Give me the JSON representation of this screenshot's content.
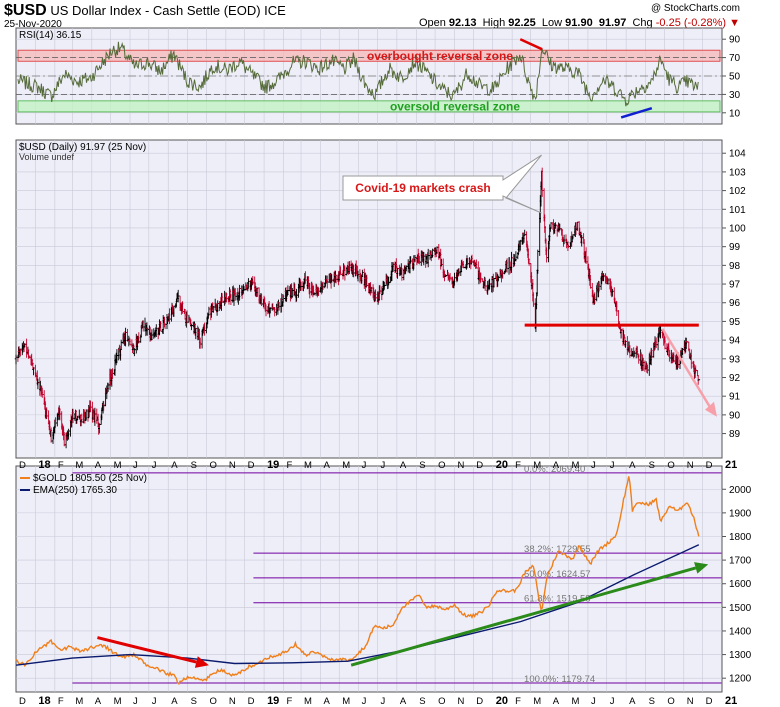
{
  "header": {
    "symbol": "$USD",
    "name": "US Dollar Index - Cash Settle (EOD)",
    "exchange": "ICE",
    "date": "25-Nov-2020",
    "brand": "@ StockCharts.com",
    "open_label": "Open",
    "open": "92.13",
    "high_label": "High",
    "high": "92.25",
    "low_label": "Low",
    "low": "91.90",
    "close": "91.97",
    "chg_label": "Chg",
    "chg": "-0.25 (-0.28%)"
  },
  "colors": {
    "background": "#eeeef8",
    "bar_up": "#000000",
    "bar_down": "#c0002a",
    "rsi_line": "#556b3a",
    "overbought_zone": "#f6b8b8",
    "oversold_zone": "#c0f2c0",
    "annotation_red": "#e00000",
    "annotation_blue": "#1020d0",
    "gold_line": "#f07f1b",
    "ema_line": "#0a1a6e",
    "fib_lines": "#7000a0",
    "green_arrow": "#2a8a1a",
    "pink_arrow": "#f7a0aa"
  },
  "time_axis": {
    "labels": [
      "D",
      "18",
      "F",
      "M",
      "A",
      "M",
      "J",
      "J",
      "A",
      "S",
      "O",
      "N",
      "D",
      "19",
      "F",
      "M",
      "A",
      "M",
      "J",
      "J",
      "A",
      "S",
      "O",
      "N",
      "D",
      "20",
      "F",
      "M",
      "A",
      "M",
      "J",
      "J",
      "A",
      "S",
      "O",
      "N",
      "D",
      "21"
    ],
    "start": "2017-12-01",
    "end": "2021-01-01"
  },
  "rsi_panel": {
    "legend": "RSI(14) 36.15",
    "ticks": [
      "10",
      "30",
      "50",
      "70",
      "90"
    ],
    "overbought_label": "overbought reversal zone",
    "oversold_label": "oversold reversal zone",
    "levels": [
      70,
      30
    ],
    "points": [
      [
        "2017-12-04",
        45
      ],
      [
        "2018-01-05",
        38
      ],
      [
        "2018-01-26",
        28
      ],
      [
        "2018-02-16",
        52
      ],
      [
        "2018-03-09",
        44
      ],
      [
        "2018-03-30",
        48
      ],
      [
        "2018-04-20",
        66
      ],
      [
        "2018-05-04",
        78
      ],
      [
        "2018-05-18",
        80
      ],
      [
        "2018-06-08",
        60
      ],
      [
        "2018-06-29",
        65
      ],
      [
        "2018-07-20",
        55
      ],
      [
        "2018-08-10",
        74
      ],
      [
        "2018-08-31",
        45
      ],
      [
        "2018-09-21",
        38
      ],
      [
        "2018-10-12",
        62
      ],
      [
        "2018-11-02",
        56
      ],
      [
        "2018-11-23",
        66
      ],
      [
        "2018-12-14",
        50
      ],
      [
        "2019-01-04",
        38
      ],
      [
        "2019-01-25",
        47
      ],
      [
        "2019-02-15",
        64
      ],
      [
        "2019-03-08",
        66
      ],
      [
        "2019-03-29",
        58
      ],
      [
        "2019-04-19",
        66
      ],
      [
        "2019-05-10",
        58
      ],
      [
        "2019-05-24",
        68
      ],
      [
        "2019-06-14",
        38
      ],
      [
        "2019-06-28",
        30
      ],
      [
        "2019-07-19",
        58
      ],
      [
        "2019-08-09",
        48
      ],
      [
        "2019-08-30",
        66
      ],
      [
        "2019-09-20",
        52
      ],
      [
        "2019-10-11",
        36
      ],
      [
        "2019-10-31",
        28
      ],
      [
        "2019-11-22",
        54
      ],
      [
        "2019-12-13",
        38
      ],
      [
        "2020-01-03",
        36
      ],
      [
        "2020-01-24",
        58
      ],
      [
        "2020-02-14",
        74
      ],
      [
        "2020-02-28",
        42
      ],
      [
        "2020-03-09",
        25
      ],
      [
        "2020-03-20",
        82
      ],
      [
        "2020-04-03",
        62
      ],
      [
        "2020-04-24",
        58
      ],
      [
        "2020-05-15",
        55
      ],
      [
        "2020-06-05",
        28
      ],
      [
        "2020-06-26",
        46
      ],
      [
        "2020-07-17",
        35
      ],
      [
        "2020-07-31",
        24
      ],
      [
        "2020-08-21",
        36
      ],
      [
        "2020-09-11",
        44
      ],
      [
        "2020-09-25",
        68
      ],
      [
        "2020-10-09",
        46
      ],
      [
        "2020-10-23",
        38
      ],
      [
        "2020-11-06",
        44
      ],
      [
        "2020-11-25",
        36
      ]
    ]
  },
  "usd_panel": {
    "legend": "$USD (Daily) 91.97 (25 Nov)",
    "legend2": "Volume undef",
    "ticks": [
      "89",
      "90",
      "91",
      "92",
      "93",
      "94",
      "95",
      "96",
      "97",
      "98",
      "99",
      "100",
      "101",
      "102",
      "103",
      "104"
    ],
    "annotation": "Covid-19 markets crash",
    "support_level": 94.8,
    "support_from": "2020-02-21",
    "support_to": "2020-11-25",
    "pink_arrow_from": [
      "2020-09-28",
      94.6
    ],
    "pink_arrow_to": [
      "2020-12-24",
      89.9
    ],
    "points": [
      [
        "2017-12-01",
        93.0
      ],
      [
        "2017-12-15",
        93.8
      ],
      [
        "2018-01-01",
        92.3
      ],
      [
        "2018-01-12",
        91.0
      ],
      [
        "2018-01-26",
        88.8
      ],
      [
        "2018-02-09",
        90.3
      ],
      [
        "2018-02-16",
        88.6
      ],
      [
        "2018-03-02",
        90.0
      ],
      [
        "2018-03-16",
        89.7
      ],
      [
        "2018-03-30",
        90.2
      ],
      [
        "2018-04-13",
        89.4
      ],
      [
        "2018-04-27",
        91.6
      ],
      [
        "2018-05-11",
        93.0
      ],
      [
        "2018-05-25",
        94.3
      ],
      [
        "2018-06-08",
        93.5
      ],
      [
        "2018-06-22",
        94.8
      ],
      [
        "2018-07-06",
        94.2
      ],
      [
        "2018-07-20",
        94.7
      ],
      [
        "2018-08-03",
        95.2
      ],
      [
        "2018-08-17",
        96.2
      ],
      [
        "2018-08-31",
        95.0
      ],
      [
        "2018-09-14",
        94.6
      ],
      [
        "2018-09-21",
        93.9
      ],
      [
        "2018-10-05",
        95.6
      ],
      [
        "2018-10-19",
        95.8
      ],
      [
        "2018-11-02",
        96.5
      ],
      [
        "2018-11-16",
        96.3
      ],
      [
        "2018-11-30",
        96.9
      ],
      [
        "2018-12-14",
        97.0
      ],
      [
        "2018-12-28",
        96.1
      ],
      [
        "2019-01-11",
        95.6
      ],
      [
        "2019-01-25",
        95.8
      ],
      [
        "2019-02-08",
        96.6
      ],
      [
        "2019-02-22",
        96.5
      ],
      [
        "2019-03-08",
        97.3
      ],
      [
        "2019-03-22",
        96.4
      ],
      [
        "2019-04-05",
        97.0
      ],
      [
        "2019-04-19",
        97.4
      ],
      [
        "2019-05-03",
        97.5
      ],
      [
        "2019-05-17",
        97.9
      ],
      [
        "2019-05-31",
        97.7
      ],
      [
        "2019-06-14",
        97.0
      ],
      [
        "2019-06-28",
        96.1
      ],
      [
        "2019-07-12",
        96.8
      ],
      [
        "2019-07-26",
        97.9
      ],
      [
        "2019-08-09",
        97.5
      ],
      [
        "2019-08-23",
        98.0
      ],
      [
        "2019-09-06",
        98.4
      ],
      [
        "2019-09-20",
        98.4
      ],
      [
        "2019-10-04",
        98.9
      ],
      [
        "2019-10-18",
        97.3
      ],
      [
        "2019-11-01",
        97.2
      ],
      [
        "2019-11-15",
        98.0
      ],
      [
        "2019-11-29",
        98.3
      ],
      [
        "2019-12-13",
        97.2
      ],
      [
        "2019-12-27",
        96.8
      ],
      [
        "2020-01-10",
        97.4
      ],
      [
        "2020-01-24",
        97.9
      ],
      [
        "2020-02-07",
        98.4
      ],
      [
        "2020-02-20",
        99.8
      ],
      [
        "2020-03-02",
        97.5
      ],
      [
        "2020-03-09",
        94.8
      ],
      [
        "2020-03-13",
        98.6
      ],
      [
        "2020-03-19",
        102.8
      ],
      [
        "2020-03-27",
        98.5
      ],
      [
        "2020-04-03",
        100.3
      ],
      [
        "2020-04-17",
        99.8
      ],
      [
        "2020-05-01",
        99.0
      ],
      [
        "2020-05-15",
        100.3
      ],
      [
        "2020-05-29",
        98.4
      ],
      [
        "2020-06-10",
        96.1
      ],
      [
        "2020-06-26",
        97.4
      ],
      [
        "2020-07-10",
        96.6
      ],
      [
        "2020-07-24",
        94.4
      ],
      [
        "2020-08-07",
        93.4
      ],
      [
        "2020-08-21",
        93.2
      ],
      [
        "2020-09-01",
        92.3
      ],
      [
        "2020-09-11",
        93.3
      ],
      [
        "2020-09-25",
        94.5
      ],
      [
        "2020-10-09",
        93.1
      ],
      [
        "2020-10-23",
        92.8
      ],
      [
        "2020-11-04",
        93.9
      ],
      [
        "2020-11-13",
        92.8
      ],
      [
        "2020-11-25",
        91.97
      ]
    ]
  },
  "gold_panel": {
    "legend": "$GOLD 1805.50 (25 Nov)",
    "ema_legend": "EMA(250) 1765.30",
    "ticks": [
      "1200",
      "1300",
      "1400",
      "1500",
      "1600",
      "1700",
      "1800",
      "1900",
      "2000"
    ],
    "fib_levels": [
      {
        "label": "0.0%: 2069.40",
        "value": 2069.4
      },
      {
        "label": "38.2%: 1729.55",
        "value": 1729.55
      },
      {
        "label": "50.0%: 1624.57",
        "value": 1624.57
      },
      {
        "label": "61.8%: 1519.58",
        "value": 1519.58
      },
      {
        "label": "100.0%: 1179.74",
        "value": 1179.74
      }
    ],
    "red_arrow_from": [
      "2018-04-10",
      1372
    ],
    "red_arrow_to": [
      "2018-10-05",
      1255
    ],
    "green_arrow_from": [
      "2019-05-20",
      1255
    ],
    "green_arrow_to": [
      "2020-12-10",
      1682
    ],
    "gold_points": [
      [
        "2017-12-01",
        1275
      ],
      [
        "2017-12-15",
        1255
      ],
      [
        "2018-01-05",
        1320
      ],
      [
        "2018-01-26",
        1355
      ],
      [
        "2018-02-09",
        1318
      ],
      [
        "2018-02-23",
        1330
      ],
      [
        "2018-03-16",
        1315
      ],
      [
        "2018-04-06",
        1335
      ],
      [
        "2018-04-20",
        1340
      ],
      [
        "2018-05-04",
        1312
      ],
      [
        "2018-05-18",
        1290
      ],
      [
        "2018-06-08",
        1298
      ],
      [
        "2018-06-29",
        1252
      ],
      [
        "2018-07-13",
        1242
      ],
      [
        "2018-07-27",
        1222
      ],
      [
        "2018-08-10",
        1212
      ],
      [
        "2018-08-17",
        1180
      ],
      [
        "2018-08-31",
        1205
      ],
      [
        "2018-09-14",
        1198
      ],
      [
        "2018-09-28",
        1190
      ],
      [
        "2018-10-12",
        1222
      ],
      [
        "2018-10-26",
        1236
      ],
      [
        "2018-11-09",
        1210
      ],
      [
        "2018-11-23",
        1222
      ],
      [
        "2018-12-07",
        1248
      ],
      [
        "2018-12-21",
        1258
      ],
      [
        "2019-01-04",
        1285
      ],
      [
        "2019-01-25",
        1302
      ],
      [
        "2019-02-08",
        1315
      ],
      [
        "2019-02-20",
        1343
      ],
      [
        "2019-03-08",
        1298
      ],
      [
        "2019-03-22",
        1312
      ],
      [
        "2019-04-05",
        1292
      ],
      [
        "2019-04-19",
        1278
      ],
      [
        "2019-05-03",
        1280
      ],
      [
        "2019-05-17",
        1276
      ],
      [
        "2019-05-31",
        1305
      ],
      [
        "2019-06-14",
        1342
      ],
      [
        "2019-06-25",
        1420
      ],
      [
        "2019-07-12",
        1412
      ],
      [
        "2019-07-26",
        1425
      ],
      [
        "2019-08-09",
        1500
      ],
      [
        "2019-08-23",
        1525
      ],
      [
        "2019-09-04",
        1552
      ],
      [
        "2019-09-18",
        1502
      ],
      [
        "2019-10-04",
        1505
      ],
      [
        "2019-10-18",
        1490
      ],
      [
        "2019-11-01",
        1512
      ],
      [
        "2019-11-15",
        1468
      ],
      [
        "2019-11-29",
        1462
      ],
      [
        "2019-12-13",
        1478
      ],
      [
        "2019-12-27",
        1512
      ],
      [
        "2020-01-08",
        1575
      ],
      [
        "2020-01-24",
        1568
      ],
      [
        "2020-02-07",
        1572
      ],
      [
        "2020-02-21",
        1645
      ],
      [
        "2020-03-06",
        1675
      ],
      [
        "2020-03-19",
        1475
      ],
      [
        "2020-03-27",
        1625
      ],
      [
        "2020-04-14",
        1735
      ],
      [
        "2020-04-24",
        1725
      ],
      [
        "2020-05-08",
        1705
      ],
      [
        "2020-05-18",
        1762
      ],
      [
        "2020-06-05",
        1685
      ],
      [
        "2020-06-19",
        1745
      ],
      [
        "2020-07-03",
        1772
      ],
      [
        "2020-07-17",
        1810
      ],
      [
        "2020-07-28",
        1955
      ],
      [
        "2020-08-06",
        2062
      ],
      [
        "2020-08-11",
        1910
      ],
      [
        "2020-08-21",
        1945
      ],
      [
        "2020-09-04",
        1935
      ],
      [
        "2020-09-18",
        1955
      ],
      [
        "2020-09-25",
        1862
      ],
      [
        "2020-10-09",
        1930
      ],
      [
        "2020-10-23",
        1905
      ],
      [
        "2020-11-06",
        1950
      ],
      [
        "2020-11-16",
        1885
      ],
      [
        "2020-11-25",
        1805.5
      ]
    ],
    "ema_points": [
      [
        "2017-12-01",
        1255
      ],
      [
        "2018-03-01",
        1285
      ],
      [
        "2018-06-01",
        1300
      ],
      [
        "2018-09-01",
        1285
      ],
      [
        "2018-11-15",
        1262
      ],
      [
        "2019-02-15",
        1265
      ],
      [
        "2019-05-15",
        1272
      ],
      [
        "2019-08-15",
        1320
      ],
      [
        "2019-11-15",
        1380
      ],
      [
        "2020-02-15",
        1440
      ],
      [
        "2020-05-15",
        1520
      ],
      [
        "2020-08-15",
        1640
      ],
      [
        "2020-11-25",
        1765.3
      ]
    ]
  }
}
